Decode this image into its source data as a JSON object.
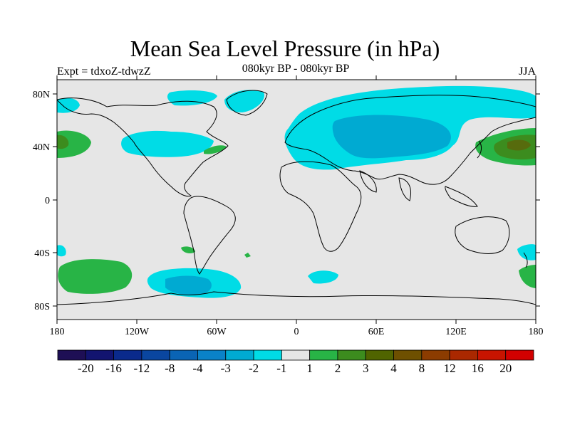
{
  "header": {
    "title": "Mean Sea Level Pressure (in hPa)",
    "expt": "Expt = tdxoZ-tdwzZ",
    "subtitle": "080kyr BP - 080kyr BP",
    "season": "JJA"
  },
  "map": {
    "lat_labels": [
      "80N",
      "40N",
      "0",
      "40S",
      "80S"
    ],
    "lon_labels": [
      "180",
      "120W",
      "60W",
      "0",
      "60E",
      "120E",
      "180"
    ],
    "background_color": "#e6e6e6",
    "coastline_color": "#000000"
  },
  "colorbar": {
    "colors": [
      "#1e0f55",
      "#121470",
      "#0a2a8c",
      "#0a46a0",
      "#0a64b4",
      "#0a82c8",
      "#00aad2",
      "#00dce6",
      "#e6e6e6",
      "#28b446",
      "#3c8c1e",
      "#506400",
      "#6e5000",
      "#8c3c00",
      "#aa2800",
      "#c81400",
      "#d20000"
    ],
    "labels": [
      "-20",
      "-16",
      "-12",
      "-8",
      "-4",
      "-3",
      "-2",
      "-1",
      "1",
      "2",
      "3",
      "4",
      "8",
      "12",
      "16",
      "20"
    ]
  }
}
